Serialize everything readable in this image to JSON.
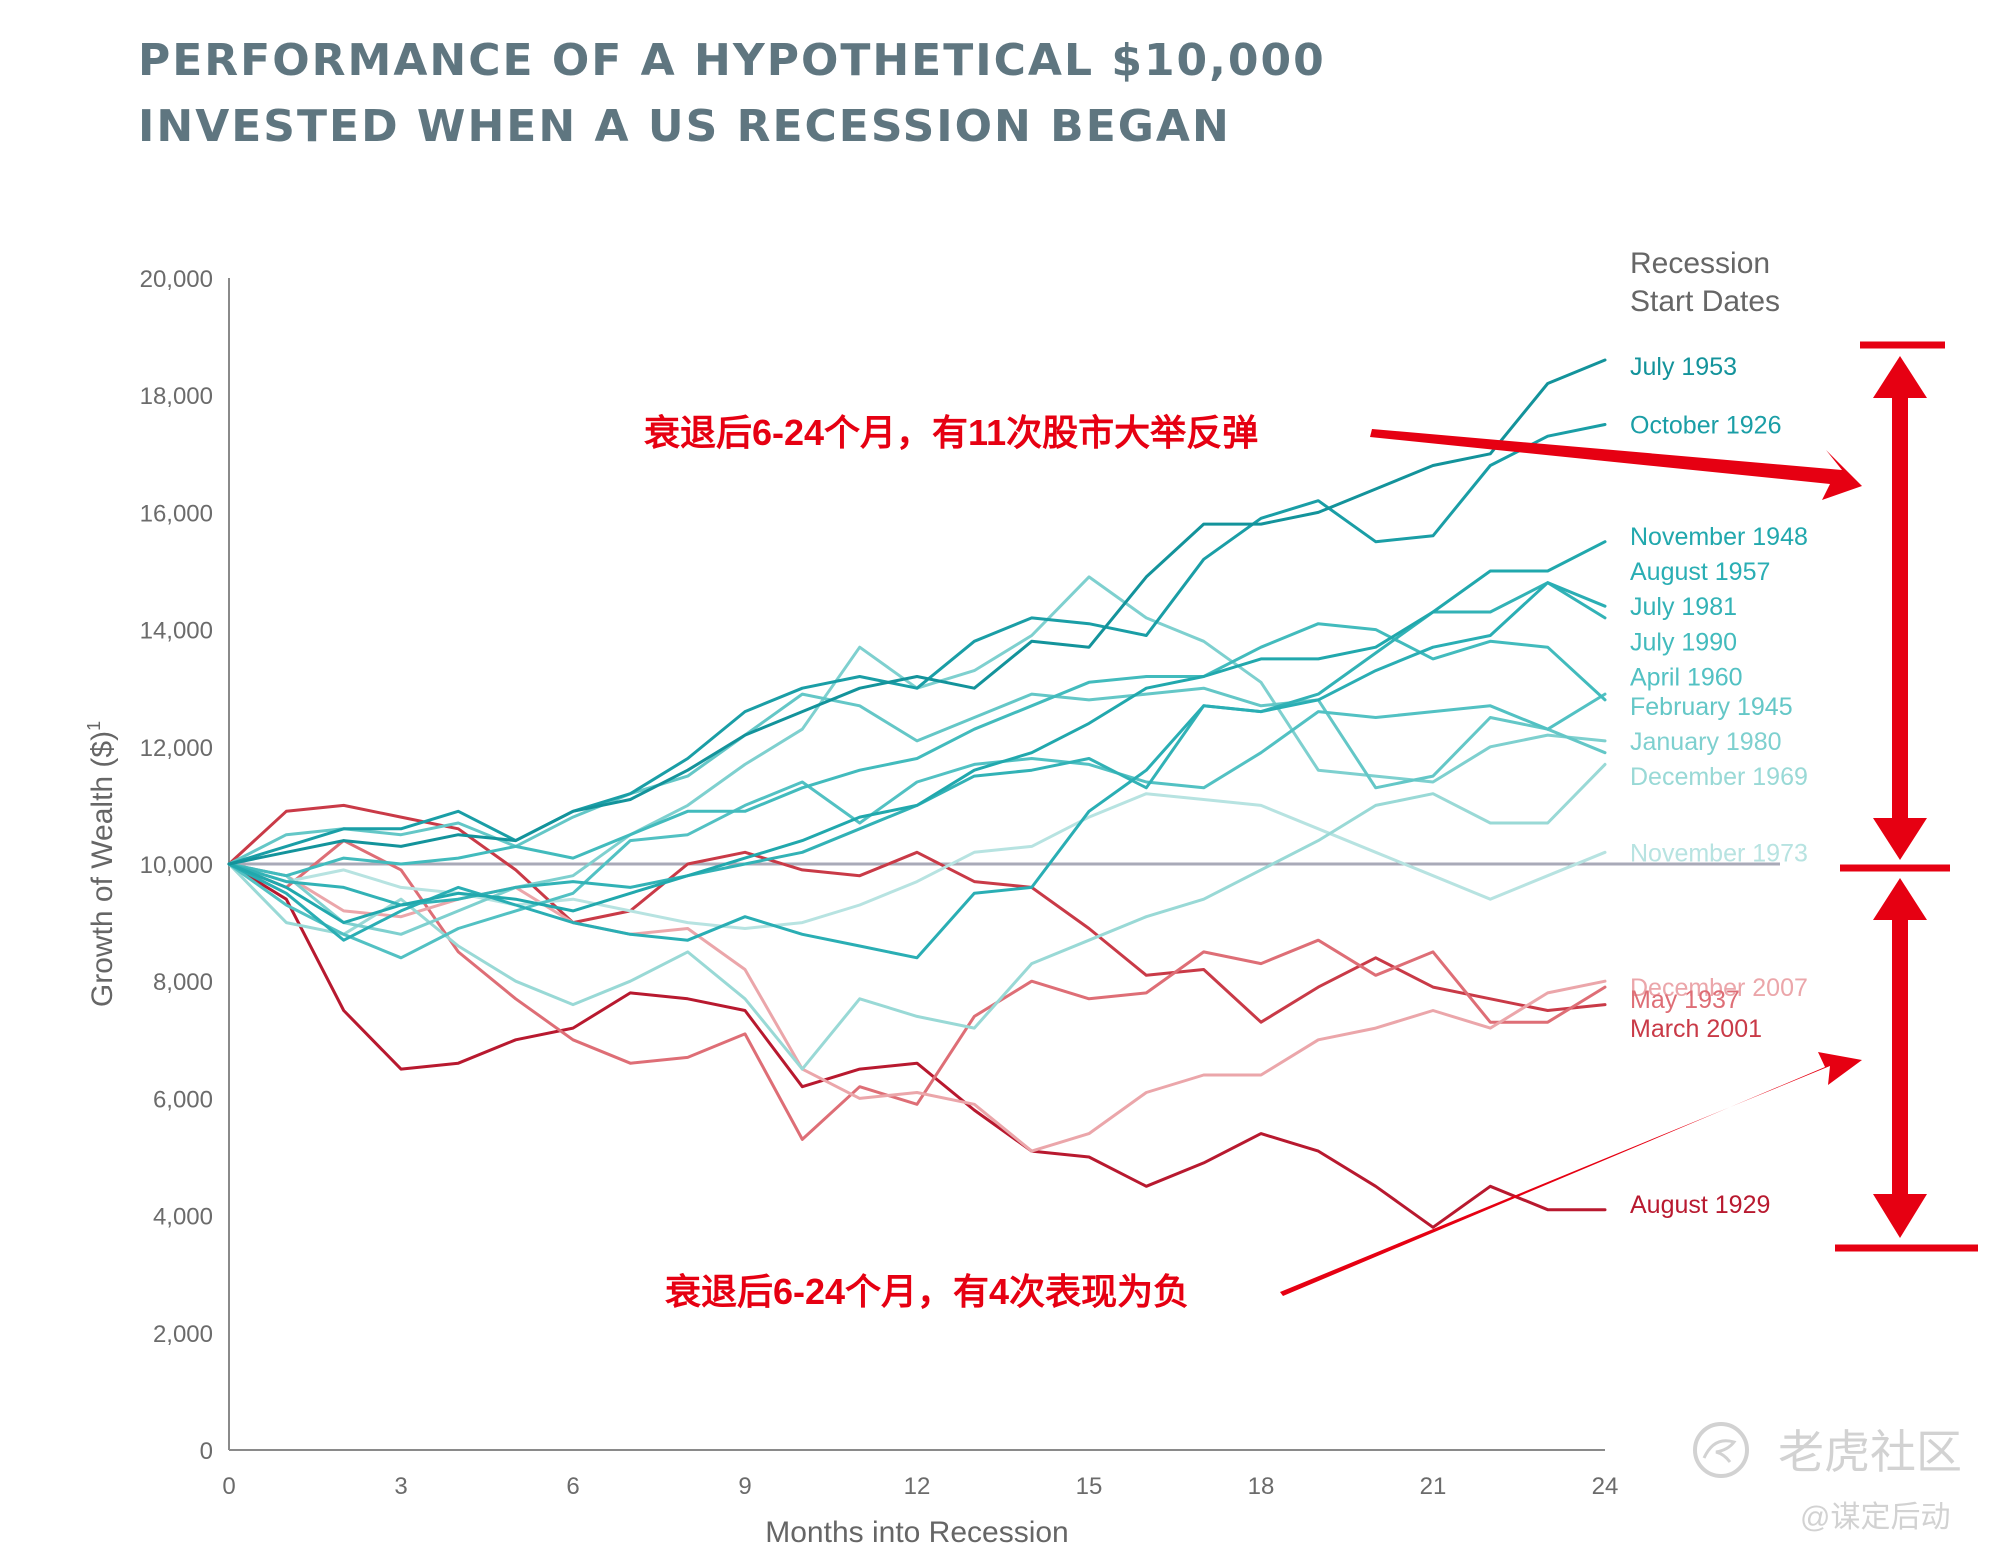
{
  "title_lines": [
    "PERFORMANCE OF A HYPOTHETICAL $10,000",
    "INVESTED WHEN A US RECESSION BEGAN"
  ],
  "chart_data": {
    "type": "line",
    "title": "PERFORMANCE OF A HYPOTHETICAL $10,000 INVESTED WHEN A US RECESSION BEGAN",
    "xlabel": "Months into Recession",
    "ylabel": "Growth of Wealth ($)",
    "ylabel_sup": "1",
    "xlim": [
      0,
      24
    ],
    "ylim": [
      0,
      20000
    ],
    "xticks": [
      0,
      3,
      6,
      9,
      12,
      15,
      18,
      21,
      24
    ],
    "xtick_labels": [
      "0",
      "3",
      "6",
      "9",
      "12",
      "15",
      "18",
      "21",
      "24"
    ],
    "yticks": [
      0,
      2000,
      4000,
      6000,
      8000,
      10000,
      12000,
      14000,
      16000,
      18000,
      20000
    ],
    "ytick_labels": [
      "0",
      "2,000",
      "4,000",
      "6,000",
      "8,000",
      "10,000",
      "12,000",
      "14,000",
      "16,000",
      "18,000",
      "20,000"
    ],
    "baseline": 10000,
    "legend_title": [
      "Recession",
      "Start Dates"
    ],
    "x": [
      0,
      1,
      2,
      3,
      4,
      5,
      6,
      7,
      8,
      9,
      10,
      11,
      12,
      13,
      14,
      15,
      16,
      17,
      18,
      19,
      20,
      21,
      22,
      23,
      24
    ],
    "series": [
      {
        "name": "July 1953",
        "color": "#13939b",
        "label_value": 18500,
        "values": [
          10000,
          10200,
          10400,
          10300,
          10500,
          10400,
          10900,
          11100,
          11600,
          12200,
          12600,
          13000,
          13200,
          13000,
          13800,
          13700,
          14900,
          15800,
          15800,
          16000,
          16400,
          16800,
          17000,
          18200,
          18600
        ]
      },
      {
        "name": "October 1926",
        "color": "#1a9ea6",
        "label_value": 17500,
        "values": [
          10000,
          10300,
          10600,
          10600,
          10900,
          10400,
          10900,
          11200,
          11800,
          12600,
          13000,
          13200,
          13000,
          13800,
          14200,
          14100,
          13900,
          15200,
          15900,
          16200,
          15500,
          15600,
          16800,
          17300,
          17500
        ]
      },
      {
        "name": "November 1948",
        "color": "#21a8ad",
        "label_value": 15600,
        "values": [
          10000,
          9600,
          9000,
          9300,
          9500,
          9400,
          9200,
          9500,
          9800,
          10100,
          10400,
          10800,
          11000,
          11600,
          11900,
          12400,
          13000,
          13200,
          13500,
          13500,
          13700,
          14300,
          15000,
          15000,
          15500
        ]
      },
      {
        "name": "August 1957",
        "color": "#2aaeb4",
        "label_value": 15000,
        "values": [
          10000,
          9500,
          8700,
          9200,
          9600,
          9300,
          9000,
          8800,
          8700,
          9100,
          8800,
          8600,
          8400,
          9500,
          9600,
          10900,
          11600,
          12700,
          12600,
          12800,
          13300,
          13700,
          13900,
          14800,
          14400
        ]
      },
      {
        "name": "July 1981",
        "color": "#32b2b6",
        "label_value": 14400,
        "values": [
          10000,
          9700,
          9600,
          9300,
          9400,
          9600,
          9700,
          9600,
          9800,
          10000,
          10200,
          10600,
          11000,
          11500,
          11600,
          11800,
          11300,
          12700,
          12600,
          12900,
          13600,
          14300,
          14300,
          14800,
          14200
        ]
      },
      {
        "name": "July 1990",
        "color": "#42bbbd",
        "label_value": 13800,
        "values": [
          10000,
          9800,
          10100,
          10000,
          10100,
          10300,
          10100,
          10500,
          10900,
          10900,
          11300,
          11600,
          11800,
          12300,
          12700,
          13100,
          13200,
          13200,
          13700,
          14100,
          14000,
          13500,
          13800,
          13700,
          12800
        ]
      },
      {
        "name": "April 1960",
        "color": "#52c1c3",
        "label_value": 13200,
        "values": [
          10000,
          9300,
          8800,
          8400,
          8900,
          9200,
          9500,
          10400,
          10500,
          11000,
          11400,
          10700,
          11400,
          11700,
          11800,
          11700,
          11400,
          11300,
          11900,
          12600,
          12500,
          12600,
          12700,
          12300,
          12900
        ]
      },
      {
        "name": "February 1945",
        "color": "#64c7c7",
        "label_value": 12700,
        "values": [
          10000,
          10500,
          10600,
          10500,
          10700,
          10300,
          10800,
          11200,
          11500,
          12200,
          12900,
          12700,
          12100,
          12500,
          12900,
          12800,
          12900,
          13000,
          12700,
          12800,
          11300,
          11500,
          12500,
          12300,
          11900
        ]
      },
      {
        "name": "January 1980",
        "color": "#7ed0cf",
        "label_value": 12100,
        "values": [
          10000,
          9800,
          9000,
          8800,
          9200,
          9600,
          9800,
          10500,
          11000,
          11700,
          12300,
          13700,
          13000,
          13300,
          13900,
          14900,
          14200,
          13800,
          13100,
          11600,
          11500,
          11400,
          12000,
          12200,
          12100
        ]
      },
      {
        "name": "December 1969",
        "color": "#99d9d6",
        "label_value": 11500,
        "values": [
          10000,
          9000,
          8800,
          9400,
          8600,
          8000,
          7600,
          8000,
          8500,
          7700,
          6500,
          7700,
          7400,
          7200,
          8300,
          8700,
          9100,
          9400,
          9900,
          10400,
          11000,
          11200,
          10700,
          10700,
          11700
        ]
      },
      {
        "name": "November 1973",
        "color": "#b7e3e1",
        "label_value": 10200,
        "values": [
          10000,
          9700,
          9900,
          9600,
          9500,
          9300,
          9400,
          9200,
          9000,
          8900,
          9000,
          9300,
          9700,
          10200,
          10300,
          10800,
          11200,
          11100,
          11000,
          10600,
          10200,
          9800,
          9400,
          9800,
          10200
        ]
      },
      {
        "name": "December 2007",
        "color": "#eba6aa",
        "label_value": 7900,
        "values": [
          10000,
          9800,
          9200,
          9100,
          9400,
          9600,
          9000,
          8800,
          8900,
          8200,
          6500,
          6000,
          6100,
          5900,
          5100,
          5400,
          6100,
          6400,
          6400,
          7000,
          7200,
          7500,
          7200,
          7800,
          8000
        ]
      },
      {
        "name": "May 1937",
        "color": "#de6e76",
        "label_value": 7700,
        "values": [
          10000,
          9600,
          10400,
          9900,
          8500,
          7700,
          7000,
          6600,
          6700,
          7100,
          5300,
          6200,
          5900,
          7400,
          8000,
          7700,
          7800,
          8500,
          8300,
          8700,
          8100,
          8500,
          7300,
          7300,
          7900
        ]
      },
      {
        "name": "March 2001",
        "color": "#c93a47",
        "label_value": 7200,
        "values": [
          10000,
          10900,
          11000,
          10800,
          10600,
          9900,
          9000,
          9200,
          10000,
          10200,
          9900,
          9800,
          10200,
          9700,
          9600,
          8900,
          8100,
          8200,
          7300,
          7900,
          8400,
          7900,
          7700,
          7500,
          7600
        ]
      },
      {
        "name": "August 1929",
        "color": "#b8192f",
        "label_value": 4200,
        "values": [
          10000,
          9400,
          7500,
          6500,
          6600,
          7000,
          7200,
          7800,
          7700,
          7500,
          6200,
          6500,
          6600,
          5800,
          5100,
          5000,
          4500,
          4900,
          5400,
          5100,
          4500,
          3800,
          4500,
          4100,
          4100
        ]
      }
    ],
    "annotations": [
      "衰退后6-24个月，有11次股市大举反弹",
      "衰退后6-24个月，有4次表现为负"
    ]
  },
  "watermark": {
    "brand": "老虎社区",
    "handle": "@谋定后动"
  },
  "colors": {
    "accent_red": "#e60012",
    "axis": "#8a8a8a",
    "baseline": "#a9aab8",
    "title": "#5f7680"
  }
}
